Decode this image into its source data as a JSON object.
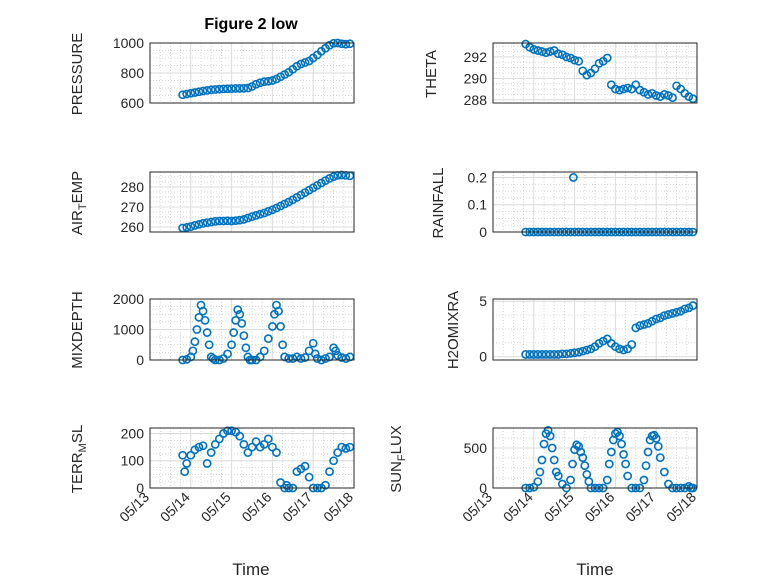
{
  "figure_title": "Figure 2 low",
  "colors": {
    "marker": "#0072BD",
    "axis": "#262626",
    "grid": "#dcdcdc"
  },
  "chart_data": [
    {
      "id": "pressure",
      "type": "scatter",
      "ylabel": "PRESSURE",
      "title": "Figure 2 low",
      "xlim": [
        "05/13",
        "05/18"
      ],
      "ylim": [
        600,
        1000
      ],
      "yticks": [
        600,
        800,
        1000
      ],
      "ytick_labels": [
        "600",
        "800",
        "1000"
      ],
      "xticks": [
        "05/13",
        "05/14",
        "05/15",
        "05/16",
        "05/17",
        "05/18"
      ],
      "show_xticklabels": false,
      "x_day": [
        0.8,
        0.9,
        1.0,
        1.1,
        1.2,
        1.3,
        1.4,
        1.5,
        1.6,
        1.7,
        1.8,
        1.9,
        2.0,
        2.1,
        2.2,
        2.3,
        2.4,
        2.5,
        2.6,
        2.7,
        2.8,
        2.9,
        3.0,
        3.1,
        3.2,
        3.3,
        3.4,
        3.5,
        3.6,
        3.7,
        3.8,
        3.9,
        4.0,
        4.1,
        4.2,
        4.3,
        4.4,
        4.5,
        4.6,
        4.7,
        4.8,
        4.9
      ],
      "y": [
        655,
        660,
        665,
        670,
        675,
        680,
        684,
        688,
        690,
        692,
        694,
        695,
        696,
        697,
        697,
        698,
        700,
        710,
        725,
        735,
        742,
        745,
        750,
        760,
        775,
        790,
        805,
        825,
        845,
        860,
        870,
        880,
        900,
        920,
        945,
        965,
        985,
        998,
        1000,
        995,
        992,
        995
      ]
    },
    {
      "id": "theta",
      "type": "scatter",
      "ylabel": "THETA",
      "xlim": [
        "05/13",
        "05/18"
      ],
      "ylim": [
        287.7,
        293.3
      ],
      "yticks": [
        288,
        290,
        292
      ],
      "ytick_labels": [
        "288",
        "290",
        "292"
      ],
      "xticks": [
        "05/13",
        "05/14",
        "05/15",
        "05/16",
        "05/17",
        "05/18"
      ],
      "show_xticklabels": false,
      "x_day": [
        0.8,
        0.9,
        1.0,
        1.1,
        1.2,
        1.3,
        1.4,
        1.5,
        1.6,
        1.7,
        1.8,
        1.9,
        2.0,
        2.1,
        2.2,
        2.3,
        2.4,
        2.5,
        2.6,
        2.7,
        2.8,
        2.9,
        3.0,
        3.1,
        3.2,
        3.3,
        3.4,
        3.5,
        3.6,
        3.7,
        3.8,
        3.9,
        4.0,
        4.1,
        4.2,
        4.3,
        4.4,
        4.5,
        4.6,
        4.7,
        4.8,
        4.9
      ],
      "y": [
        293.2,
        292.9,
        292.7,
        292.6,
        292.5,
        292.4,
        292.5,
        292.6,
        292.3,
        292.2,
        292.0,
        291.9,
        291.7,
        291.6,
        290.7,
        290.3,
        290.5,
        290.9,
        291.4,
        291.6,
        291.9,
        289.4,
        289.0,
        288.9,
        289.0,
        289.1,
        289.0,
        289.4,
        288.9,
        288.7,
        288.5,
        288.6,
        288.4,
        288.3,
        288.5,
        288.4,
        288.2,
        289.3,
        289.0,
        288.6,
        288.3,
        288.1
      ]
    },
    {
      "id": "air_temp",
      "type": "scatter",
      "ylabel": "AIR_TEMP",
      "xlim": [
        "05/13",
        "05/18"
      ],
      "ylim": [
        257.5,
        287.5
      ],
      "yticks": [
        260,
        270,
        280
      ],
      "ytick_labels": [
        "260",
        "270",
        "280"
      ],
      "xticks": [
        "05/13",
        "05/14",
        "05/15",
        "05/16",
        "05/17",
        "05/18"
      ],
      "show_xticklabels": false,
      "x_day": [
        0.8,
        0.9,
        1.0,
        1.1,
        1.2,
        1.3,
        1.4,
        1.5,
        1.6,
        1.7,
        1.8,
        1.9,
        2.0,
        2.1,
        2.2,
        2.3,
        2.4,
        2.5,
        2.6,
        2.7,
        2.8,
        2.9,
        3.0,
        3.1,
        3.2,
        3.3,
        3.4,
        3.5,
        3.6,
        3.7,
        3.8,
        3.9,
        4.0,
        4.1,
        4.2,
        4.3,
        4.4,
        4.5,
        4.6,
        4.7,
        4.8,
        4.9
      ],
      "y": [
        259.5,
        259.8,
        260.2,
        260.8,
        261.3,
        261.8,
        262.2,
        262.5,
        262.8,
        263.0,
        263.0,
        263.1,
        263.0,
        263.2,
        263.4,
        263.8,
        264.5,
        265.2,
        265.8,
        266.4,
        267.0,
        267.8,
        268.6,
        269.5,
        270.5,
        271.5,
        272.5,
        273.6,
        274.8,
        276.0,
        277.2,
        278.4,
        279.6,
        280.8,
        282.0,
        283.2,
        284.3,
        285.2,
        285.8,
        286.0,
        285.8,
        285.6
      ]
    },
    {
      "id": "rainfall",
      "type": "scatter",
      "ylabel": "RAINFALL",
      "xlim": [
        "05/13",
        "05/18"
      ],
      "ylim": [
        0,
        0.22
      ],
      "yticks": [
        0,
        0.1,
        0.2
      ],
      "ytick_labels": [
        "0",
        "0.1",
        "0.2"
      ],
      "xticks": [
        "05/13",
        "05/14",
        "05/15",
        "05/16",
        "05/17",
        "05/18"
      ],
      "show_xticklabels": false,
      "x_day": [
        0.8,
        0.9,
        1.0,
        1.1,
        1.2,
        1.3,
        1.4,
        1.5,
        1.6,
        1.7,
        1.8,
        1.9,
        2.0,
        2.1,
        2.2,
        2.3,
        2.4,
        2.5,
        2.6,
        2.7,
        2.8,
        2.9,
        3.0,
        3.1,
        3.2,
        3.3,
        3.4,
        3.5,
        3.6,
        3.7,
        3.8,
        3.9,
        4.0,
        4.1,
        4.2,
        4.3,
        4.4,
        4.5,
        4.6,
        4.7,
        4.8,
        4.9,
        1.97
      ],
      "y": [
        0,
        0,
        0,
        0,
        0,
        0,
        0,
        0,
        0,
        0,
        0,
        0,
        0,
        0,
        0,
        0,
        0,
        0,
        0,
        0,
        0,
        0,
        0,
        0,
        0,
        0,
        0,
        0,
        0,
        0,
        0,
        0,
        0,
        0,
        0,
        0,
        0,
        0,
        0,
        0,
        0,
        0,
        0.2
      ]
    },
    {
      "id": "mixdepth",
      "type": "scatter",
      "ylabel": "MIXDEPTH",
      "xlim": [
        "05/13",
        "05/18"
      ],
      "ylim": [
        0,
        2000
      ],
      "yticks": [
        0,
        1000,
        2000
      ],
      "ytick_labels": [
        "0",
        "1000",
        "2000"
      ],
      "xticks": [
        "05/13",
        "05/14",
        "05/15",
        "05/16",
        "05/17",
        "05/18"
      ],
      "show_xticklabels": false,
      "x_day": [
        0.8,
        0.9,
        1.0,
        1.05,
        1.1,
        1.15,
        1.2,
        1.25,
        1.3,
        1.35,
        1.4,
        1.45,
        1.5,
        1.55,
        1.6,
        1.7,
        1.8,
        1.9,
        2.0,
        2.05,
        2.1,
        2.15,
        2.2,
        2.25,
        2.3,
        2.35,
        2.4,
        2.45,
        2.5,
        2.6,
        2.7,
        2.8,
        2.9,
        3.0,
        3.05,
        3.1,
        3.15,
        3.2,
        3.25,
        3.3,
        3.4,
        3.5,
        3.6,
        3.7,
        3.8,
        3.9,
        4.0,
        4.05,
        4.1,
        4.2,
        4.3,
        4.4,
        4.5,
        4.55,
        4.6,
        4.7,
        4.8,
        4.9
      ],
      "y": [
        0,
        20,
        100,
        300,
        600,
        1000,
        1400,
        1800,
        1600,
        1300,
        900,
        500,
        100,
        50,
        0,
        0,
        50,
        200,
        500,
        900,
        1300,
        1650,
        1500,
        1200,
        800,
        400,
        100,
        0,
        0,
        0,
        100,
        300,
        700,
        1100,
        1500,
        1800,
        1600,
        1100,
        500,
        100,
        50,
        50,
        100,
        50,
        80,
        300,
        550,
        200,
        50,
        0,
        50,
        100,
        400,
        300,
        150,
        80,
        50,
        100
      ]
    },
    {
      "id": "h2omixra",
      "type": "scatter",
      "ylabel": "H2OMIXRA",
      "xlim": [
        "05/13",
        "05/18"
      ],
      "ylim": [
        -0.3,
        5.2
      ],
      "yticks": [
        0,
        5
      ],
      "ytick_labels": [
        "0",
        "5"
      ],
      "xticks": [
        "05/13",
        "05/14",
        "05/15",
        "05/16",
        "05/17",
        "05/18"
      ],
      "show_xticklabels": false,
      "x_day": [
        0.8,
        0.9,
        1.0,
        1.1,
        1.2,
        1.3,
        1.4,
        1.5,
        1.6,
        1.7,
        1.8,
        1.9,
        2.0,
        2.1,
        2.2,
        2.3,
        2.4,
        2.5,
        2.6,
        2.7,
        2.8,
        2.9,
        3.0,
        3.1,
        3.2,
        3.3,
        3.4,
        3.5,
        3.6,
        3.7,
        3.8,
        3.9,
        4.0,
        4.1,
        4.2,
        4.3,
        4.4,
        4.5,
        4.6,
        4.7,
        4.8,
        4.9
      ],
      "y": [
        0.2,
        0.2,
        0.2,
        0.2,
        0.2,
        0.2,
        0.2,
        0.2,
        0.2,
        0.25,
        0.25,
        0.3,
        0.35,
        0.4,
        0.5,
        0.6,
        0.7,
        0.9,
        1.2,
        1.4,
        1.6,
        1.2,
        0.9,
        0.7,
        0.6,
        0.7,
        1.1,
        2.6,
        2.8,
        2.9,
        3.0,
        3.2,
        3.4,
        3.5,
        3.7,
        3.8,
        3.9,
        4.0,
        4.1,
        4.3,
        4.4,
        4.6
      ]
    },
    {
      "id": "terr_msl",
      "type": "scatter",
      "ylabel": "TERR_MSL",
      "xlim": [
        "05/13",
        "05/18"
      ],
      "ylim": [
        0,
        220
      ],
      "yticks": [
        0,
        100,
        200
      ],
      "ytick_labels": [
        "0",
        "100",
        "200"
      ],
      "xticks": [
        "05/13",
        "05/14",
        "05/15",
        "05/16",
        "05/17",
        "05/18"
      ],
      "show_xticklabels": true,
      "x_day": [
        0.8,
        0.85,
        0.9,
        1.0,
        1.1,
        1.2,
        1.3,
        1.4,
        1.5,
        1.6,
        1.7,
        1.8,
        1.9,
        2.0,
        2.1,
        2.2,
        2.3,
        2.4,
        2.5,
        2.6,
        2.7,
        2.8,
        2.9,
        3.0,
        3.1,
        3.2,
        3.3,
        3.35,
        3.4,
        3.5,
        3.6,
        3.7,
        3.8,
        3.9,
        4.0,
        4.1,
        4.2,
        4.3,
        4.4,
        4.5,
        4.6,
        4.7,
        4.8,
        4.9
      ],
      "y": [
        120,
        60,
        90,
        120,
        140,
        150,
        155,
        90,
        130,
        160,
        180,
        200,
        210,
        210,
        205,
        190,
        160,
        130,
        150,
        170,
        150,
        160,
        180,
        150,
        130,
        20,
        0,
        10,
        0,
        0,
        60,
        70,
        80,
        40,
        0,
        0,
        0,
        10,
        60,
        100,
        130,
        150,
        145,
        150
      ]
    },
    {
      "id": "sun_flux",
      "type": "scatter",
      "ylabel": "SUN_FLUX",
      "xlim": [
        "05/13",
        "05/18"
      ],
      "ylim": [
        0,
        750
      ],
      "yticks": [
        0,
        500
      ],
      "ytick_labels": [
        "0",
        "500"
      ],
      "xticks": [
        "05/13",
        "05/14",
        "05/15",
        "05/16",
        "05/17",
        "05/18"
      ],
      "show_xticklabels": true,
      "x_day": [
        0.8,
        0.9,
        1.0,
        1.1,
        1.15,
        1.2,
        1.25,
        1.3,
        1.35,
        1.4,
        1.45,
        1.5,
        1.55,
        1.6,
        1.7,
        1.8,
        1.9,
        1.95,
        2.0,
        2.05,
        2.1,
        2.15,
        2.2,
        2.25,
        2.3,
        2.35,
        2.4,
        2.5,
        2.6,
        2.7,
        2.8,
        2.85,
        2.9,
        2.95,
        3.0,
        3.05,
        3.1,
        3.15,
        3.2,
        3.25,
        3.3,
        3.4,
        3.5,
        3.6,
        3.7,
        3.75,
        3.8,
        3.85,
        3.9,
        3.95,
        4.0,
        4.05,
        4.1,
        4.2,
        4.3,
        4.4,
        4.5,
        4.6,
        4.7,
        4.8,
        4.85,
        4.9
      ],
      "y": [
        0,
        0,
        10,
        80,
        200,
        350,
        550,
        680,
        720,
        650,
        500,
        350,
        200,
        150,
        50,
        0,
        100,
        300,
        480,
        540,
        520,
        450,
        380,
        280,
        170,
        80,
        0,
        0,
        0,
        0,
        100,
        300,
        450,
        600,
        680,
        700,
        650,
        550,
        420,
        300,
        150,
        0,
        0,
        0,
        100,
        280,
        450,
        600,
        650,
        660,
        620,
        520,
        380,
        200,
        50,
        0,
        0,
        0,
        0,
        20,
        0,
        0
      ]
    }
  ],
  "x_axis": {
    "label": "Time",
    "tick_labels": [
      "05/13",
      "05/14",
      "05/15",
      "05/16",
      "05/17",
      "05/18"
    ]
  },
  "y_labels_display": {
    "pressure": "PRESSURE",
    "theta": "THETA",
    "air_temp_main": "AIR",
    "air_temp_sub": "T",
    "air_temp_tail": "EMP",
    "rainfall": "RAINFALL",
    "mixdepth": "MIXDEPTH",
    "h2omixra": "H2OMIXRA",
    "terr_main": "TERR",
    "terr_sub": "M",
    "terr_tail": "SL",
    "sun_main": "SUN",
    "sun_sub": "F",
    "sun_tail": "LUX"
  }
}
